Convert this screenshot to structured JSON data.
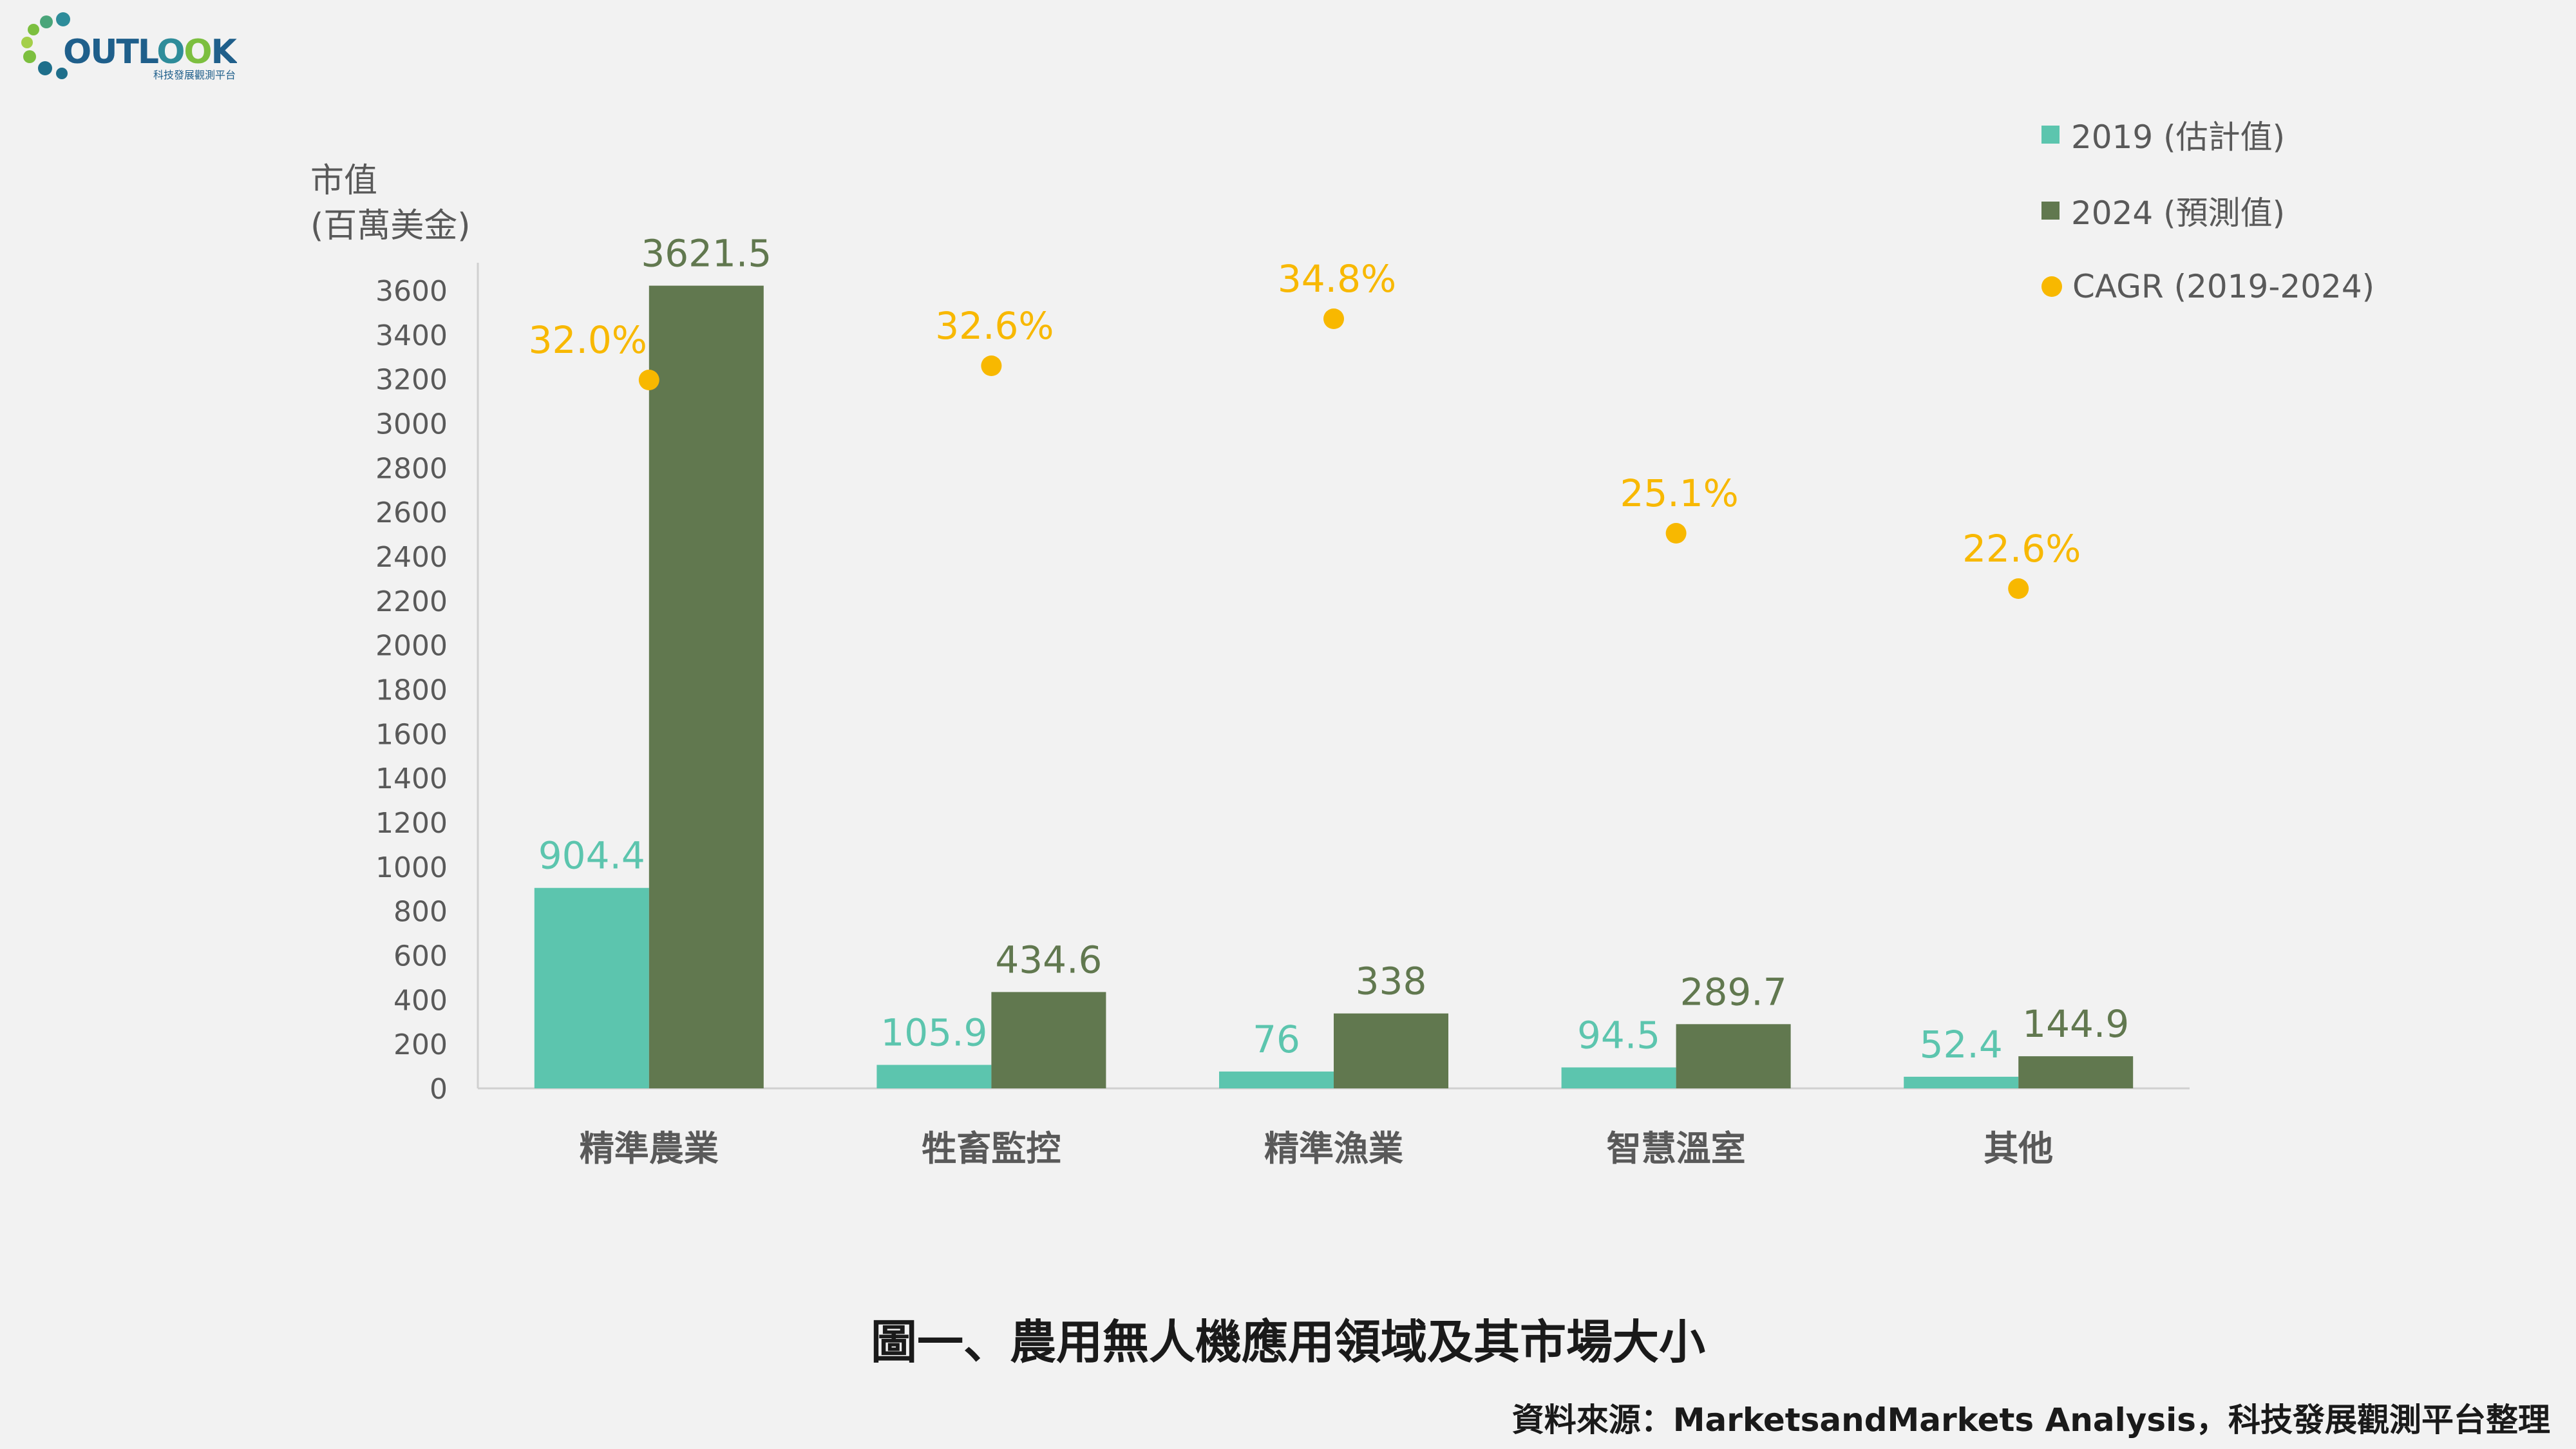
{
  "logo": {
    "name": "OUTLOOK",
    "tagline": "科技發展觀測平台"
  },
  "colors": {
    "s2019": "#5cc5ae",
    "s2024": "#61784f",
    "cagr": "#f8b800",
    "axis": "#d0d0d0",
    "text": "#595959"
  },
  "axis_title": {
    "line1": "市值",
    "line2": "(百萬美金)"
  },
  "legend": {
    "s2019": "2019 (估計值)",
    "s2024": "2024 (預測值)",
    "cagr": "CAGR (2019-2024)"
  },
  "chart_data": {
    "type": "bar",
    "categories": [
      "精準農業",
      "牲畜監控",
      "精準漁業",
      "智慧溫室",
      "其他"
    ],
    "series": [
      {
        "name": "2019 (估計值)",
        "values": [
          904.4,
          105.9,
          76,
          94.5,
          52.4
        ],
        "labels": [
          "904.4",
          "105.9",
          "76",
          "94.5",
          "52.4"
        ]
      },
      {
        "name": "2024 (預測值)",
        "values": [
          3621.5,
          434.6,
          338,
          289.7,
          144.9
        ],
        "labels": [
          "3621.5",
          "434.6",
          "338",
          "289.7",
          "144.9"
        ]
      }
    ],
    "cagr": {
      "name": "CAGR (2019-2024)",
      "values": [
        32.0,
        32.6,
        34.8,
        25.1,
        22.6
      ],
      "labels": [
        "32.0%",
        "32.6%",
        "34.8%",
        "25.1%",
        "22.6%"
      ]
    },
    "ylim": [
      0,
      3600
    ],
    "yticks": [
      0,
      200,
      400,
      600,
      800,
      1000,
      1200,
      1400,
      1600,
      1800,
      2000,
      2200,
      2400,
      2600,
      2800,
      3000,
      3200,
      3400,
      3600
    ]
  },
  "caption": "圖一、農用無人機應用領域及其市場大小",
  "source": "資料來源：MarketsandMarkets Analysis，科技發展觀測平台整理"
}
